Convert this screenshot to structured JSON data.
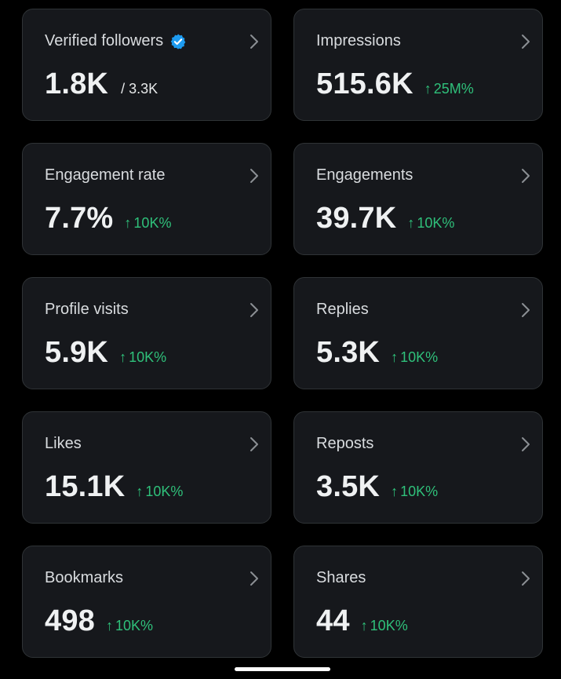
{
  "colors": {
    "background": "#000000",
    "card": "#16181c",
    "card_border": "#2f3336",
    "positive": "#2fc07a",
    "verified": "#1d9bf0"
  },
  "cards": [
    {
      "title": "Verified followers",
      "value": "1.8K",
      "sub": "/ 3.3K",
      "icon": "verified-badge-icon"
    },
    {
      "title": "Impressions",
      "value": "515.6K",
      "arrow": "↑",
      "delta": "25M%"
    },
    {
      "title": "Engagement rate",
      "value": "7.7%",
      "arrow": "↑",
      "delta": "10K%"
    },
    {
      "title": "Engagements",
      "value": "39.7K",
      "arrow": "↑",
      "delta": "10K%"
    },
    {
      "title": "Profile visits",
      "value": "5.9K",
      "arrow": "↑",
      "delta": "10K%"
    },
    {
      "title": "Replies",
      "value": "5.3K",
      "arrow": "↑",
      "delta": "10K%"
    },
    {
      "title": "Likes",
      "value": "15.1K",
      "arrow": "↑",
      "delta": "10K%"
    },
    {
      "title": "Reposts",
      "value": "3.5K",
      "arrow": "↑",
      "delta": "10K%"
    },
    {
      "title": "Bookmarks",
      "value": "498",
      "arrow": "↑",
      "delta": "10K%"
    },
    {
      "title": "Shares",
      "value": "44",
      "arrow": "↑",
      "delta": "10K%"
    }
  ]
}
